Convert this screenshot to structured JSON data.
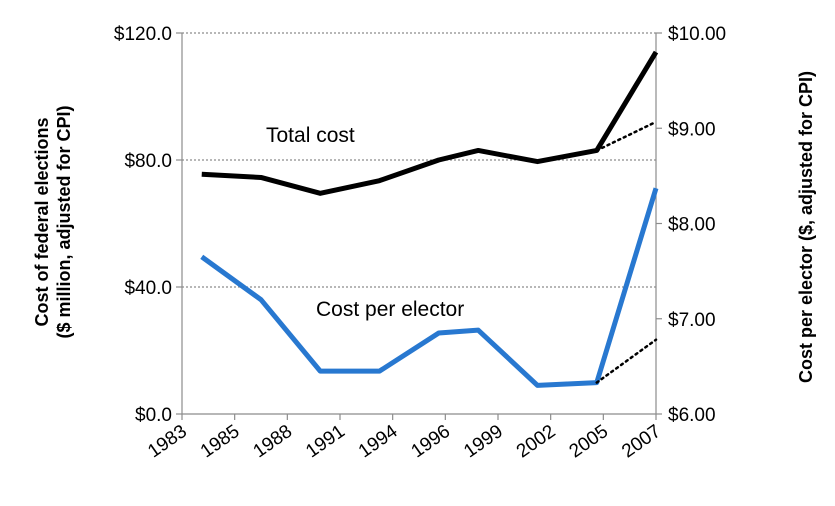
{
  "chart_data": {
    "type": "line",
    "x_tick_labels": [
      "1983",
      "1985",
      "1988",
      "1991",
      "1994",
      "1996",
      "1999",
      "2002",
      "2005",
      "2007"
    ],
    "y_left": {
      "label_line1": "Cost of federal elections",
      "label_line2": "($ million, adjusted for CPI)",
      "min": 0,
      "max": 120,
      "ticks": [
        0,
        40,
        80,
        120
      ],
      "tick_labels": [
        "$0.0",
        "$40.0",
        "$80.0",
        "$120.0"
      ]
    },
    "y_right": {
      "label": "Cost per elector ($, adjusted for CPI)",
      "min": 6,
      "max": 10,
      "ticks": [
        6,
        7,
        8,
        9,
        10
      ],
      "tick_labels": [
        "$6.00",
        "$7.00",
        "$8.00",
        "$9.00",
        "$10.00"
      ]
    },
    "grid": "horizontal-dotted",
    "series": [
      {
        "name": "Total cost",
        "axis": "left",
        "color": "#000000",
        "x": [
          "1984",
          "1987",
          "1990",
          "1993",
          "1996",
          "1998",
          "2001",
          "2004",
          "2007"
        ],
        "values": [
          75.5,
          74.5,
          69.5,
          73.5,
          80,
          83,
          79.5,
          83,
          114
        ],
        "dotted_projection": {
          "x": [
            "2004",
            "2007"
          ],
          "values": [
            83,
            92
          ]
        }
      },
      {
        "name": "Cost per elector",
        "axis": "right",
        "color": "#2878d0",
        "x": [
          "1984",
          "1987",
          "1990",
          "1993",
          "1996",
          "1998",
          "2001",
          "2004",
          "2007"
        ],
        "values": [
          7.65,
          7.2,
          6.45,
          6.45,
          6.85,
          6.88,
          6.3,
          6.33,
          8.37
        ],
        "dotted_projection": {
          "x": [
            "2004",
            "2007"
          ],
          "values": [
            6.33,
            6.78
          ]
        }
      }
    ],
    "annotations": [
      "Total cost",
      "Cost per elector"
    ]
  }
}
